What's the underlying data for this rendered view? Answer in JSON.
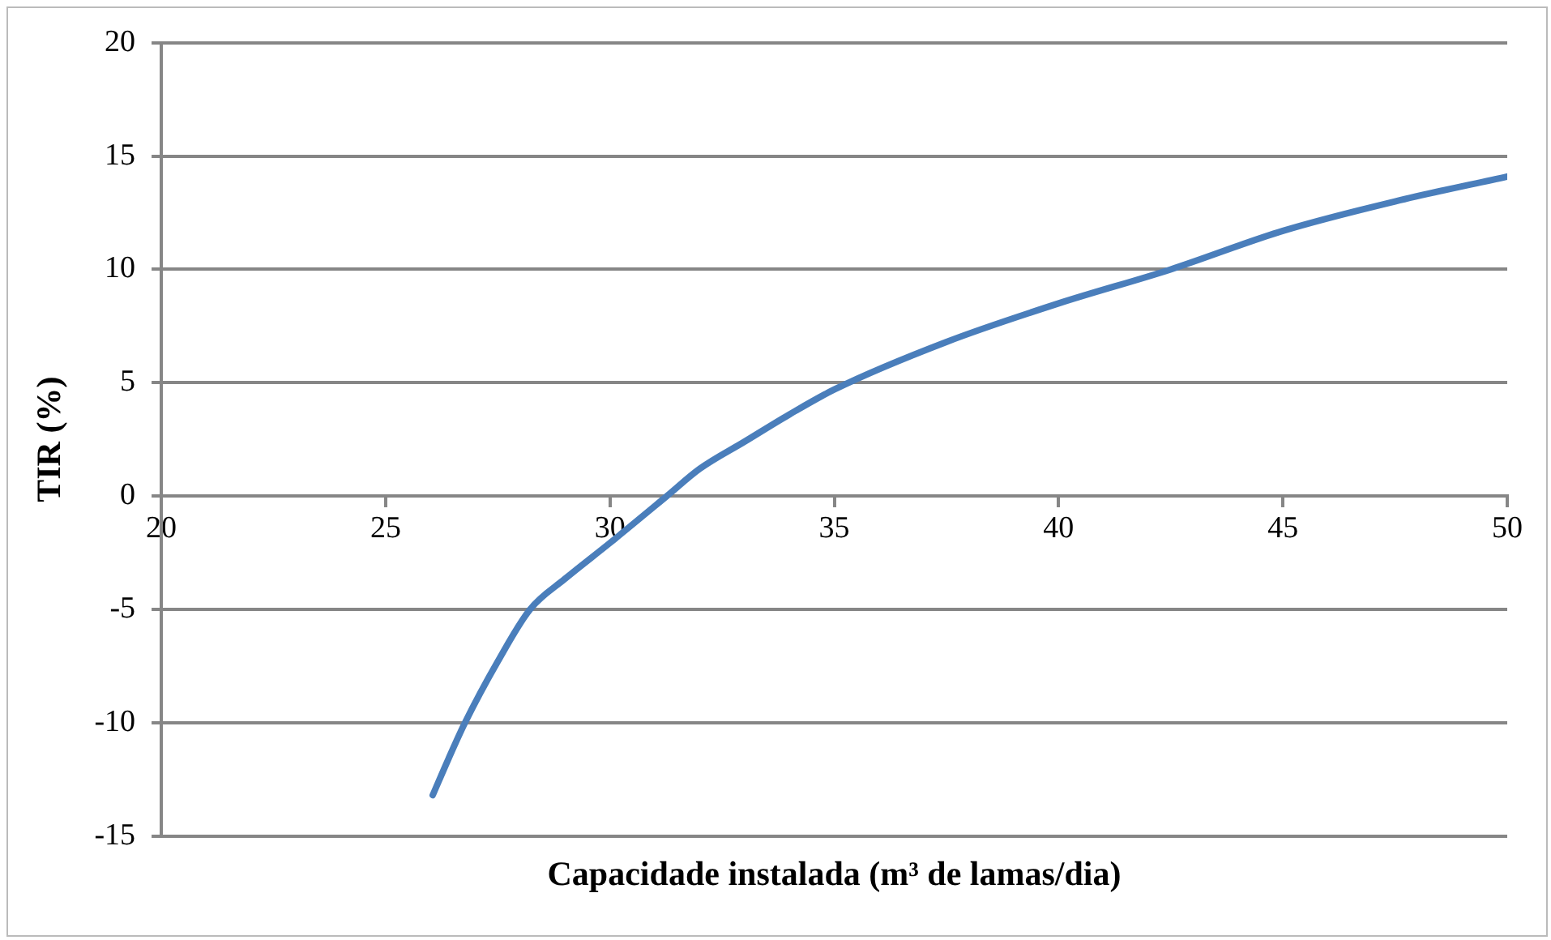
{
  "chart_data": {
    "type": "line",
    "xlabel": "Capacidade instalada (m³ de lamas/dia)",
    "ylabel": "TIR (%)",
    "series": [
      {
        "color": "#4a7ebb",
        "x": [
          26.05,
          26.4,
          26.77,
          27.5,
          28.22,
          29,
          30,
          31.27,
          32,
          33,
          34,
          35,
          37.5,
          40,
          42.5,
          45,
          47.5,
          50
        ],
        "values": [
          -13.2,
          -11.6,
          -10,
          -7.3,
          -5,
          -3.65,
          -2.07,
          0,
          1.2,
          2.4,
          3.6,
          4.7,
          6.8,
          8.5,
          10,
          11.7,
          13,
          14.1
        ]
      }
    ],
    "xlim": [
      20,
      50
    ],
    "xticks": [
      20,
      25,
      30,
      35,
      40,
      45,
      50
    ],
    "ylim": [
      -15,
      20
    ],
    "yticks": [
      -15,
      -10,
      -5,
      0,
      5,
      10,
      15,
      20
    ],
    "grid": "y",
    "legend": false,
    "marker": "none",
    "line_style": "solid"
  }
}
